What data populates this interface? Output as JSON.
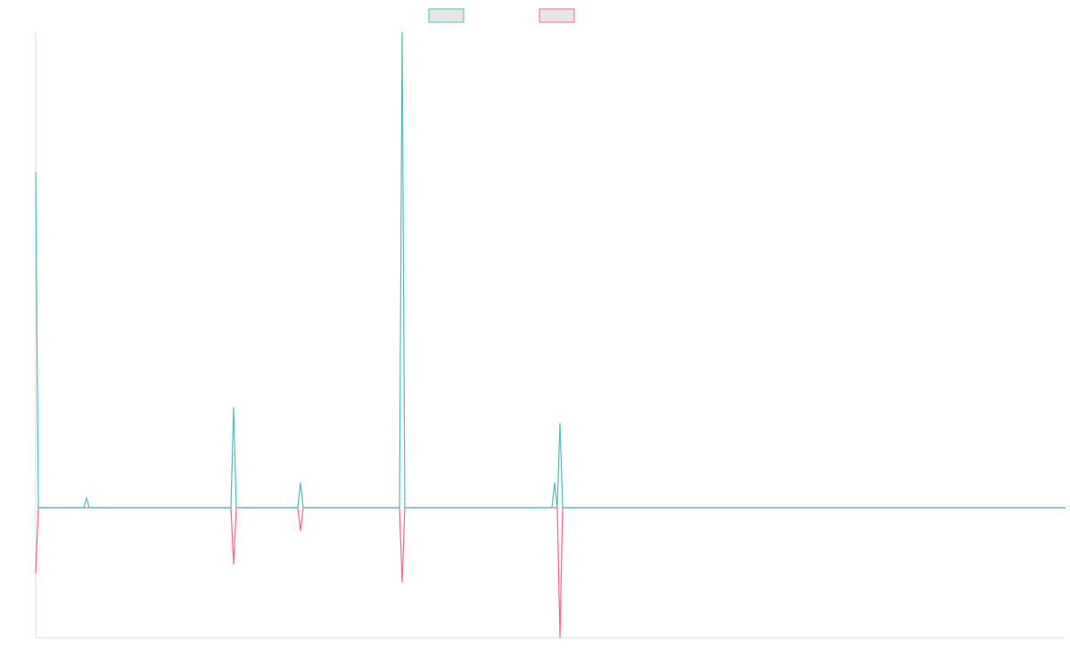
{
  "chart_data": {
    "type": "line",
    "x": [
      0,
      1,
      18,
      19,
      20,
      73,
      74,
      75,
      98,
      99,
      100,
      136,
      137,
      138,
      193,
      194,
      195,
      196,
      197,
      385
    ],
    "series": [
      {
        "color": "#4bc0c0",
        "values": [
          3.77,
          0,
          0,
          0.11,
          0,
          0,
          1.13,
          0,
          0,
          0.28,
          0,
          0,
          5.34,
          0,
          0,
          0.28,
          0,
          0.95,
          0,
          0
        ]
      },
      {
        "color": "#ff6384",
        "values": [
          -0.74,
          0,
          0,
          0,
          0,
          0,
          -0.64,
          0,
          0,
          -0.26,
          0,
          0,
          -0.84,
          0,
          0,
          0,
          0,
          -1.46,
          0,
          0
        ]
      }
    ],
    "xlim": [
      0,
      385
    ],
    "ylim": [
      -1.46,
      5.34
    ]
  }
}
